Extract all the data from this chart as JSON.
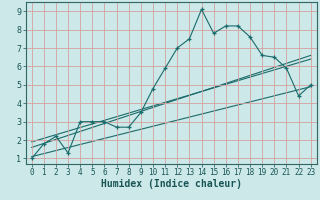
{
  "title": "",
  "xlabel": "Humidex (Indice chaleur)",
  "ylabel": "",
  "bg_color": "#cce8e8",
  "grid_color": "#d4a0a0",
  "line_color": "#1a6b6b",
  "xlim": [
    -0.5,
    23.5
  ],
  "ylim": [
    0.7,
    9.5
  ],
  "xticks": [
    0,
    1,
    2,
    3,
    4,
    5,
    6,
    7,
    8,
    9,
    10,
    11,
    12,
    13,
    14,
    15,
    16,
    17,
    18,
    19,
    20,
    21,
    22,
    23
  ],
  "yticks": [
    1,
    2,
    3,
    4,
    5,
    6,
    7,
    8,
    9
  ],
  "main_x": [
    0,
    1,
    2,
    3,
    4,
    5,
    6,
    7,
    8,
    9,
    10,
    11,
    12,
    13,
    14,
    15,
    16,
    17,
    18,
    19,
    20,
    21,
    22,
    23
  ],
  "main_y": [
    1.0,
    1.8,
    2.2,
    1.3,
    3.0,
    3.0,
    3.0,
    2.7,
    2.7,
    3.5,
    4.8,
    5.9,
    7.0,
    7.5,
    9.1,
    7.8,
    8.2,
    8.2,
    7.6,
    6.6,
    6.5,
    5.9,
    4.4,
    5.0
  ],
  "trend1_x": [
    0,
    23
  ],
  "trend1_y": [
    1.6,
    6.6
  ],
  "trend2_x": [
    0,
    23
  ],
  "trend2_y": [
    1.9,
    6.4
  ],
  "trend3_x": [
    0,
    23
  ],
  "trend3_y": [
    1.1,
    4.9
  ],
  "tick_fontsize": 5.5,
  "xlabel_fontsize": 7.0
}
